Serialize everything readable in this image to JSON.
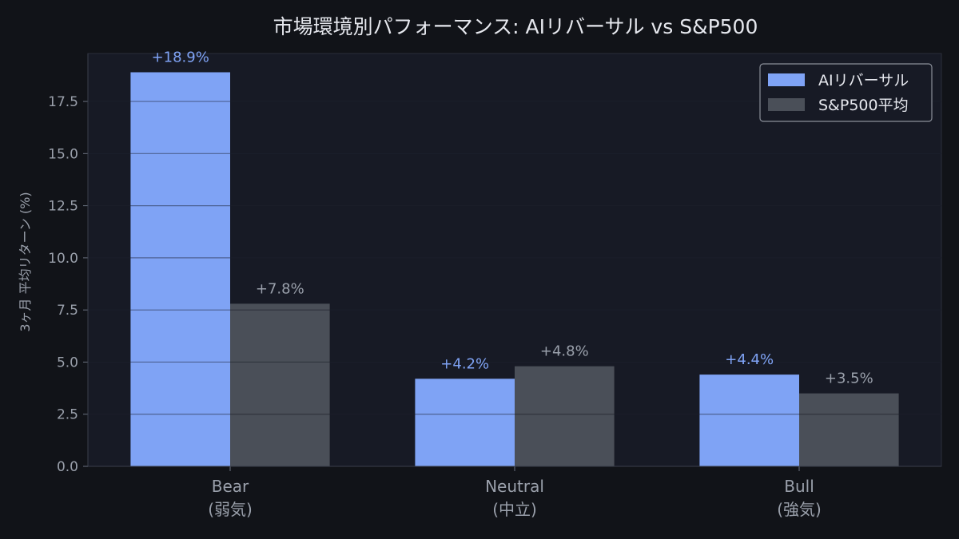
{
  "chart_data": {
    "type": "bar",
    "title": "市場環境別パフォーマンス: AIリバーサル vs S&P500",
    "ylabel": "3ヶ月 平均リターン (%)",
    "xlabel": "",
    "ylim": [
      0,
      19.8
    ],
    "yticks": [
      0.0,
      2.5,
      5.0,
      7.5,
      10.0,
      12.5,
      15.0,
      17.5
    ],
    "ytick_labels": [
      "0.0",
      "2.5",
      "5.0",
      "7.5",
      "10.0",
      "12.5",
      "15.0",
      "17.5"
    ],
    "categories": [
      [
        "Bear",
        "(弱気)"
      ],
      [
        "Neutral",
        "(中立)"
      ],
      [
        "Bull",
        "(強気)"
      ]
    ],
    "series": [
      {
        "name": "AIリバーサル",
        "values": [
          18.9,
          4.2,
          4.4
        ],
        "labels": [
          "+18.9%",
          "+4.2%",
          "+4.4%"
        ],
        "color": "#7fa3f5"
      },
      {
        "name": "S&P500平均",
        "values": [
          7.8,
          4.8,
          3.5
        ],
        "labels": [
          "+7.8%",
          "+4.8%",
          "+3.5%"
        ],
        "color": "#4a4f58"
      }
    ],
    "legend": "top-right",
    "grid": true
  }
}
